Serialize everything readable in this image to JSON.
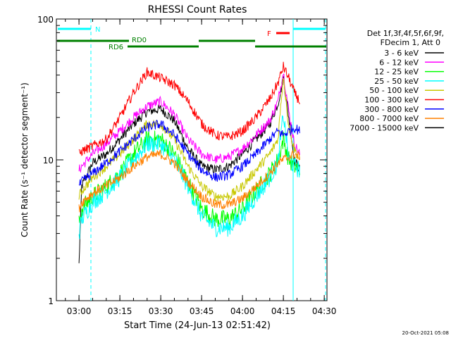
{
  "chart_data": {
    "type": "line",
    "title": "RHESSI Count Rates",
    "xlabel": "Start Time (24-Jun-13 02:51:42)",
    "ylabel": "Count Rate (s⁻¹ detector segment⁻¹)",
    "y_scale": "log",
    "ylim": [
      1,
      100
    ],
    "y_ticks": [
      1,
      10,
      100
    ],
    "y_tick_labels": [
      "1",
      "10",
      "100"
    ],
    "x_range": [
      "02:51:42",
      "04:31:00"
    ],
    "x_tick_labels": [
      "03:00",
      "03:15",
      "03:30",
      "03:45",
      "04:00",
      "04:15",
      "04:30"
    ],
    "legend_header": [
      "Det 1f,3f,4f,5f,6f,9f,",
      "FDecim 1, Att 0"
    ],
    "legend_position": "right",
    "series": [
      {
        "name": "3 - 6 keV",
        "color": "#000000",
        "x": [
          "03:00",
          "03:01",
          "03:05",
          "03:10",
          "03:15",
          "03:20",
          "03:25",
          "03:30",
          "03:35",
          "03:40",
          "03:45",
          "03:50",
          "03:55",
          "04:00",
          "04:05",
          "04:10",
          "04:13",
          "04:15",
          "04:17",
          "04:19",
          "04:21"
        ],
        "y": [
          1.8,
          6.5,
          9.5,
          11,
          14,
          18,
          22,
          23,
          19,
          12,
          9.0,
          8.5,
          9.0,
          11,
          14,
          18,
          25,
          38,
          20,
          10,
          8.5
        ]
      },
      {
        "name": "6 - 12 keV",
        "color": "#ff00ff",
        "x": [
          "03:00",
          "03:01",
          "03:05",
          "03:10",
          "03:15",
          "03:20",
          "03:25",
          "03:30",
          "03:35",
          "03:40",
          "03:45",
          "03:50",
          "03:55",
          "04:00",
          "04:05",
          "04:10",
          "04:13",
          "04:15",
          "04:17",
          "04:19",
          "04:21"
        ],
        "y": [
          8.5,
          9.0,
          11,
          13,
          16,
          20,
          24,
          26,
          21,
          14,
          11,
          10,
          10.5,
          12,
          15,
          19,
          26,
          42,
          22,
          13,
          11
        ]
      },
      {
        "name": "12 - 25 keV",
        "color": "#00ff00",
        "x": [
          "03:00",
          "03:01",
          "03:05",
          "03:10",
          "03:15",
          "03:20",
          "03:25",
          "03:30",
          "03:35",
          "03:40",
          "03:45",
          "03:50",
          "03:55",
          "04:00",
          "04:05",
          "04:10",
          "04:13",
          "04:15",
          "04:17",
          "04:19",
          "04:21"
        ],
        "y": [
          3.5,
          4.5,
          5.5,
          6.5,
          8.0,
          11,
          14,
          14,
          11,
          7.0,
          4.5,
          3.8,
          3.8,
          4.5,
          6.0,
          8.0,
          10,
          14,
          10,
          9.0,
          8.5
        ]
      },
      {
        "name": "25 - 50 keV",
        "color": "#00ffff",
        "x": [
          "03:00",
          "03:01",
          "03:05",
          "03:10",
          "03:15",
          "03:20",
          "03:25",
          "03:30",
          "03:35",
          "03:40",
          "03:45",
          "03:50",
          "03:55",
          "04:00",
          "04:05",
          "04:10",
          "04:13",
          "04:15",
          "04:17",
          "04:19",
          "04:21"
        ],
        "y": [
          3.0,
          3.8,
          5.0,
          6.0,
          7.5,
          10,
          13,
          13,
          10,
          6.5,
          4.0,
          3.3,
          3.3,
          4.0,
          5.5,
          7.5,
          9.5,
          21,
          10,
          9.0,
          8.5
        ]
      },
      {
        "name": "50 - 100 keV",
        "color": "#c8c800",
        "x": [
          "03:00",
          "03:01",
          "03:05",
          "03:10",
          "03:15",
          "03:20",
          "03:25",
          "03:30",
          "03:35",
          "03:40",
          "03:45",
          "03:50",
          "03:55",
          "04:00",
          "04:05",
          "04:10",
          "04:13",
          "04:15",
          "04:17",
          "04:19",
          "04:21"
        ],
        "y": [
          5.5,
          6.0,
          7.5,
          9.0,
          11,
          14,
          18,
          18,
          14,
          9.0,
          6.5,
          5.5,
          5.5,
          6.5,
          8.5,
          11,
          14,
          40,
          17,
          12,
          10
        ]
      },
      {
        "name": "100 - 300 keV",
        "color": "#ff0000",
        "x": [
          "03:00",
          "03:01",
          "03:05",
          "03:10",
          "03:15",
          "03:20",
          "03:25",
          "03:30",
          "03:35",
          "03:40",
          "03:45",
          "03:50",
          "03:55",
          "04:00",
          "04:05",
          "04:10",
          "04:13",
          "04:15",
          "04:17",
          "04:19",
          "04:21"
        ],
        "y": [
          11,
          11.5,
          12.5,
          14,
          20,
          30,
          42,
          38,
          34,
          26,
          18,
          15,
          14.5,
          16,
          20,
          27,
          35,
          46,
          38,
          30,
          26
        ]
      },
      {
        "name": "300 - 800 keV",
        "color": "#0000ff",
        "x": [
          "03:00",
          "03:01",
          "03:05",
          "03:10",
          "03:15",
          "03:20",
          "03:25",
          "03:30",
          "03:35",
          "03:40",
          "03:45",
          "03:50",
          "03:55",
          "04:00",
          "04:05",
          "04:10",
          "04:13",
          "04:15",
          "04:17",
          "04:19",
          "04:21"
        ],
        "y": [
          6.5,
          7.0,
          8.0,
          9.5,
          11.5,
          14,
          17,
          18,
          15,
          11,
          8.5,
          7.5,
          7.8,
          9.0,
          11,
          14,
          16,
          15,
          16,
          17,
          16
        ]
      },
      {
        "name": "800 - 7000 keV",
        "color": "#ff8000",
        "x": [
          "03:00",
          "03:01",
          "03:05",
          "03:10",
          "03:15",
          "03:20",
          "03:25",
          "03:30",
          "03:35",
          "03:40",
          "03:45",
          "03:50",
          "03:55",
          "04:00",
          "04:05",
          "04:10",
          "04:13",
          "04:15",
          "04:17",
          "04:19",
          "04:21"
        ],
        "y": [
          4.5,
          5.0,
          5.8,
          6.5,
          7.5,
          9.0,
          10.5,
          11,
          9.5,
          7.0,
          5.5,
          4.8,
          4.8,
          5.3,
          6.5,
          8.0,
          9.5,
          10,
          10.5,
          11,
          10.5
        ]
      },
      {
        "name": "7000 - 15000 keV",
        "color": "#000000",
        "x": [],
        "y": []
      }
    ],
    "annotations": [
      {
        "text": "N",
        "color": "#00ffff"
      },
      {
        "text": "RD0",
        "color": "#008000"
      },
      {
        "text": "RD6",
        "color": "#008000"
      },
      {
        "text": "F",
        "color": "#ff0000"
      }
    ]
  },
  "footer": {
    "date_stamp": "20-Oct-2021 05:08"
  }
}
